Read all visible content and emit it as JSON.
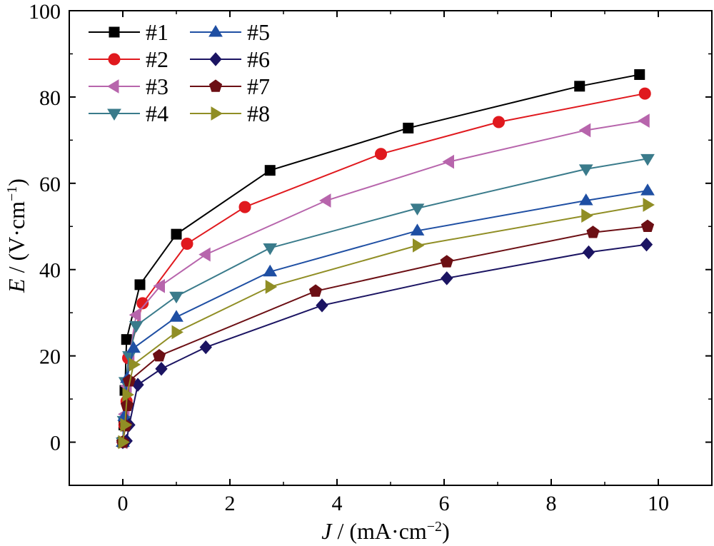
{
  "chart_data": {
    "type": "line",
    "xlabel": {
      "var": "J",
      "unit": " / (mA·cm",
      "sup": "−2",
      "close": ")"
    },
    "ylabel": {
      "var": "E",
      "unit": " / (V·cm",
      "sup": "−1",
      "close": ")"
    },
    "xlim": [
      -1,
      11
    ],
    "ylim": [
      -10,
      100
    ],
    "xticks": [
      0,
      2,
      4,
      6,
      8,
      10
    ],
    "yticks": [
      0,
      20,
      40,
      60,
      80,
      100
    ],
    "xtick_labels": [
      "0",
      "2",
      "4",
      "6",
      "8",
      "10"
    ],
    "ytick_labels": [
      "0",
      "20",
      "40",
      "60",
      "80",
      "100"
    ],
    "grid": false,
    "legend_position": "top-left",
    "series": [
      {
        "name": "#1",
        "color": "#000000",
        "marker": "square",
        "x": [
          0.0,
          0.02,
          0.04,
          0.07,
          0.32,
          1.0,
          2.75,
          5.33,
          8.53,
          9.65
        ],
        "y": [
          0.0,
          4.0,
          12.0,
          23.8,
          36.5,
          48.2,
          63.0,
          72.8,
          82.5,
          85.2
        ]
      },
      {
        "name": "#2",
        "color": "#e0191e",
        "marker": "circle",
        "x": [
          0.0,
          0.03,
          0.07,
          0.1,
          0.37,
          1.2,
          2.28,
          4.82,
          7.02,
          9.75
        ],
        "y": [
          0.0,
          4.0,
          9.5,
          19.5,
          32.2,
          46.0,
          54.5,
          66.8,
          74.2,
          80.8
        ]
      },
      {
        "name": "#3",
        "color": "#b765ac",
        "marker": "triangle-left",
        "x": [
          0.0,
          0.04,
          0.08,
          0.13,
          0.25,
          0.7,
          1.55,
          3.8,
          6.1,
          8.65,
          9.75
        ],
        "y": [
          0.0,
          6.5,
          13.0,
          20.5,
          29.5,
          36.2,
          43.5,
          56.0,
          65.0,
          72.3,
          74.5
        ]
      },
      {
        "name": "#4",
        "color": "#3a7b8b",
        "marker": "triangle-down",
        "x": [
          0.0,
          0.02,
          0.05,
          0.12,
          0.25,
          1.0,
          2.75,
          5.5,
          8.65,
          9.8
        ],
        "y": [
          0.0,
          5.0,
          14.0,
          20.0,
          27.0,
          33.8,
          45.0,
          54.2,
          63.3,
          65.7
        ]
      },
      {
        "name": "#5",
        "color": "#1f4fa3",
        "marker": "triangle-up",
        "x": [
          0.0,
          0.03,
          0.08,
          0.2,
          1.0,
          2.75,
          5.5,
          8.65,
          9.8
        ],
        "y": [
          0.0,
          6.0,
          14.8,
          21.8,
          29.0,
          39.5,
          49.0,
          56.0,
          58.3
        ]
      },
      {
        "name": "#6",
        "color": "#1b1462",
        "marker": "diamond",
        "x": [
          0.0,
          0.07,
          0.12,
          0.28,
          0.72,
          1.55,
          3.72,
          6.05,
          8.7,
          9.78
        ],
        "y": [
          0.0,
          0.3,
          4.0,
          13.3,
          17.0,
          22.0,
          31.7,
          38.0,
          44.0,
          45.8
        ]
      },
      {
        "name": "#7",
        "color": "#6c0f14",
        "marker": "pentagon",
        "x": [
          0.0,
          0.05,
          0.08,
          0.12,
          0.68,
          3.6,
          6.05,
          8.78,
          9.8
        ],
        "y": [
          0.0,
          3.8,
          8.5,
          14.2,
          20.0,
          35.0,
          41.8,
          48.6,
          50.0
        ]
      },
      {
        "name": "#8",
        "color": "#908e25",
        "marker": "triangle-right",
        "x": [
          0.0,
          0.04,
          0.08,
          0.2,
          1.0,
          2.75,
          5.5,
          8.65,
          9.8
        ],
        "y": [
          0.0,
          4.0,
          11.0,
          18.0,
          25.5,
          36.0,
          45.6,
          52.5,
          55.0
        ]
      }
    ]
  }
}
